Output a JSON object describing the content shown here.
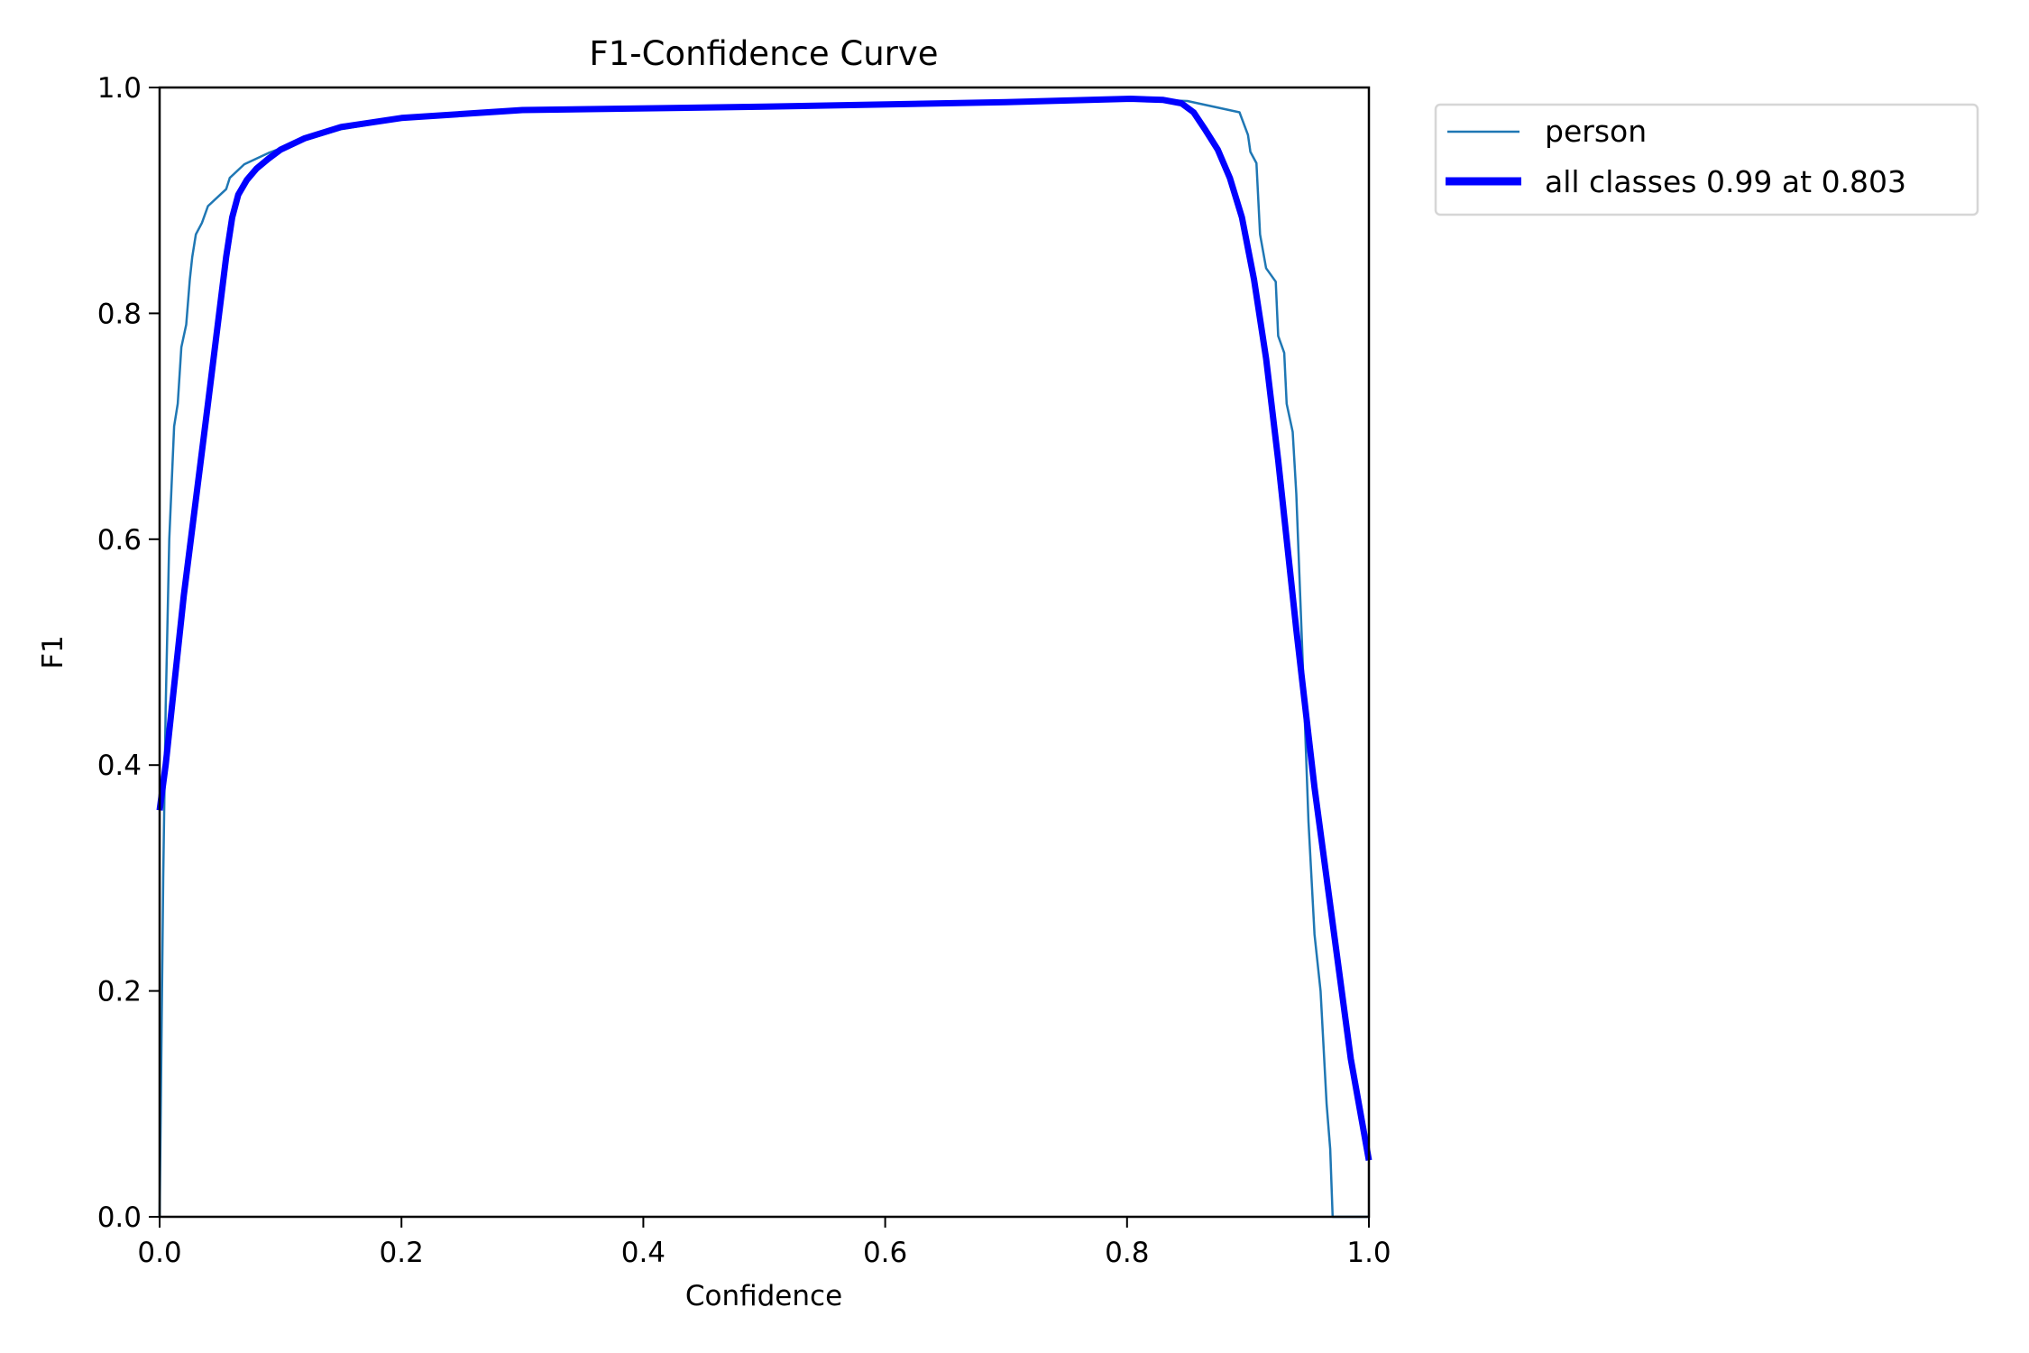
{
  "chart_data": {
    "type": "line",
    "title": "F1-Confidence Curve",
    "xlabel": "Confidence",
    "ylabel": "F1",
    "xlim": [
      0,
      1
    ],
    "ylim": [
      0,
      1
    ],
    "xticks": [
      "0.0",
      "0.2",
      "0.4",
      "0.6",
      "0.8",
      "1.0"
    ],
    "yticks": [
      "0.0",
      "0.2",
      "0.4",
      "0.6",
      "0.8",
      "1.0"
    ],
    "grid": false,
    "legend_position": "outside-top-right",
    "series": [
      {
        "name": "person",
        "color": "#1f77b4",
        "x": [
          0,
          0.003,
          0.005,
          0.008,
          0.012,
          0.015,
          0.018,
          0.022,
          0.025,
          0.027,
          0.03,
          0.035,
          0.04,
          0.05,
          0.055,
          0.058,
          0.07,
          0.09,
          0.11,
          0.15,
          0.2,
          0.3,
          0.5,
          0.8,
          0.85,
          0.893,
          0.9,
          0.902,
          0.907,
          0.91,
          0.915,
          0.923,
          0.925,
          0.93,
          0.932,
          0.937,
          0.94,
          0.945,
          0.95,
          0.955,
          0.96,
          0.965,
          0.968,
          0.97,
          1.0
        ],
        "y": [
          0,
          0.3,
          0.45,
          0.6,
          0.7,
          0.72,
          0.77,
          0.79,
          0.83,
          0.85,
          0.87,
          0.88,
          0.895,
          0.905,
          0.91,
          0.92,
          0.932,
          0.942,
          0.95,
          0.963,
          0.972,
          0.98,
          0.983,
          0.99,
          0.988,
          0.978,
          0.958,
          0.943,
          0.933,
          0.87,
          0.84,
          0.828,
          0.78,
          0.765,
          0.72,
          0.695,
          0.64,
          0.5,
          0.35,
          0.25,
          0.2,
          0.1,
          0.06,
          0,
          0
        ]
      },
      {
        "name": "all classes 0.99 at 0.803",
        "color": "#0000ff",
        "x": [
          0,
          0.005,
          0.02,
          0.04,
          0.055,
          0.06,
          0.065,
          0.072,
          0.08,
          0.09,
          0.1,
          0.12,
          0.15,
          0.2,
          0.3,
          0.5,
          0.7,
          0.803,
          0.83,
          0.845,
          0.855,
          0.865,
          0.875,
          0.885,
          0.895,
          0.905,
          0.915,
          0.925,
          0.94,
          0.955,
          0.97,
          0.985,
          0.995,
          1.0
        ],
        "y": [
          0.36,
          0.4,
          0.55,
          0.72,
          0.85,
          0.885,
          0.905,
          0.918,
          0.928,
          0.937,
          0.945,
          0.955,
          0.965,
          0.973,
          0.98,
          0.983,
          0.987,
          0.99,
          0.989,
          0.986,
          0.978,
          0.962,
          0.945,
          0.92,
          0.885,
          0.83,
          0.76,
          0.67,
          0.52,
          0.38,
          0.26,
          0.14,
          0.08,
          0.05
        ]
      }
    ]
  }
}
